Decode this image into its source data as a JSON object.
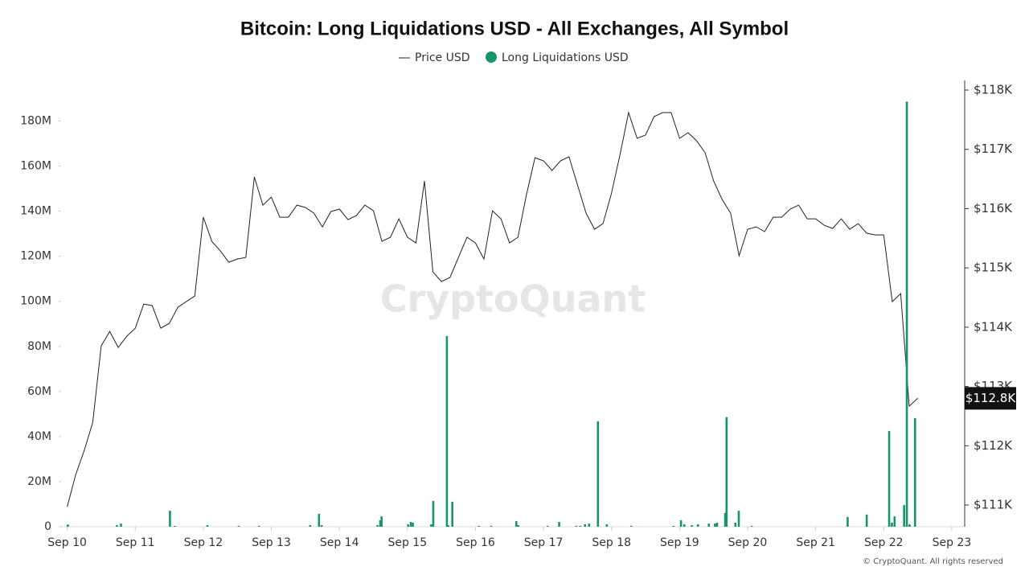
{
  "chart_data": {
    "type": "combo",
    "title": "Bitcoin: Long Liquidations USD - All Exchanges, All Symbol",
    "watermark": "CryptoQuant",
    "footer": "© CryptoQuant. All rights reserved",
    "current_price": {
      "value": 112800,
      "label": "$112.8K"
    },
    "xlim": [
      -0.09,
      13.19
    ],
    "xticks": [
      {
        "value": 0,
        "label": "Sep 10"
      },
      {
        "value": 1,
        "label": "Sep 11"
      },
      {
        "value": 2,
        "label": "Sep 12"
      },
      {
        "value": 3,
        "label": "Sep 13"
      },
      {
        "value": 4,
        "label": "Sep 14"
      },
      {
        "value": 5,
        "label": "Sep 15"
      },
      {
        "value": 6,
        "label": "Sep 16"
      },
      {
        "value": 7,
        "label": "Sep 17"
      },
      {
        "value": 8,
        "label": "Sep 18"
      },
      {
        "value": 9,
        "label": "Sep 19"
      },
      {
        "value": 10,
        "label": "Sep 20"
      },
      {
        "value": 11,
        "label": "Sep 21"
      },
      {
        "value": 12,
        "label": "Sep 22"
      },
      {
        "value": 13,
        "label": "Sep 23"
      }
    ],
    "ylim": [
      0,
      198000000
    ],
    "yticks": [
      0,
      {
        "value": 20000000,
        "label": "20M"
      },
      {
        "value": 40000000,
        "label": "40M"
      },
      {
        "value": 60000000,
        "label": "60M"
      },
      {
        "value": 80000000,
        "label": "80M"
      },
      {
        "value": 100000000,
        "label": "100M"
      },
      {
        "value": 120000000,
        "label": "120M"
      },
      {
        "value": 140000000,
        "label": "140M"
      },
      {
        "value": 160000000,
        "label": "160M"
      },
      {
        "value": 180000000,
        "label": "180M"
      }
    ],
    "y2lim": [
      110634,
      118163
    ],
    "y2ticks": [
      {
        "value": 111000,
        "label": "$111K"
      },
      {
        "value": 112000,
        "label": "$112K"
      },
      {
        "value": 113000,
        "label": "$113K"
      },
      {
        "value": 114000,
        "label": "$114K"
      },
      {
        "value": 115000,
        "label": "$115K"
      },
      {
        "value": 116000,
        "label": "$116K"
      },
      {
        "value": 117000,
        "label": "$117K"
      },
      {
        "value": 118000,
        "label": "$118K"
      }
    ],
    "series": [
      {
        "name": "Price USD",
        "type": "line",
        "axis": "y2",
        "color": "#222222",
        "x": [
          0,
          0.125,
          0.25,
          0.375,
          0.5,
          0.625,
          0.75,
          0.875,
          1,
          1.125,
          1.25,
          1.375,
          1.5,
          1.625,
          1.75,
          1.875,
          2,
          2.125,
          2.25,
          2.375,
          2.5,
          2.625,
          2.75,
          2.875,
          3,
          3.125,
          3.25,
          3.375,
          3.5,
          3.625,
          3.75,
          3.875,
          4,
          4.125,
          4.25,
          4.375,
          4.5,
          4.625,
          4.75,
          4.875,
          5,
          5.125,
          5.25,
          5.375,
          5.5,
          5.625,
          5.75,
          5.875,
          6,
          6.125,
          6.25,
          6.375,
          6.5,
          6.625,
          6.75,
          6.875,
          7,
          7.125,
          7.25,
          7.375,
          7.5,
          7.625,
          7.75,
          7.875,
          8,
          8.125,
          8.25,
          8.375,
          8.5,
          8.625,
          8.75,
          8.875,
          9,
          9.125,
          9.25,
          9.375,
          9.5,
          9.625,
          9.75,
          9.875,
          10,
          10.125,
          10.25,
          10.375,
          10.5,
          10.625,
          10.75,
          10.875,
          11,
          11.125,
          11.25,
          11.375,
          11.5,
          11.625,
          11.75,
          11.875,
          12,
          12.125,
          12.25,
          12.375,
          12.5
        ],
        "values": [
          110971,
          111514,
          111921,
          112396,
          113685,
          113929,
          113658,
          113848,
          113983,
          114390,
          114363,
          113983,
          114065,
          114336,
          114431,
          114526,
          115856,
          115449,
          115286,
          115096,
          115150,
          115177,
          116534,
          116059,
          116195,
          115856,
          115856,
          116059,
          116019,
          115924,
          115693,
          115951,
          115992,
          115815,
          115883,
          116059,
          115964,
          115449,
          115517,
          115829,
          115517,
          115422,
          116467,
          114933,
          114770,
          114838,
          115177,
          115517,
          115422,
          115150,
          115964,
          115829,
          115422,
          115517,
          116236,
          116860,
          116806,
          116643,
          116806,
          116874,
          116399,
          115924,
          115652,
          115747,
          116263,
          116914,
          117620,
          117186,
          117240,
          117552,
          117620,
          117620,
          117186,
          117281,
          117145,
          116942,
          116467,
          116154,
          115924,
          115205,
          115652,
          115693,
          115612,
          115856,
          115856,
          115992,
          116059,
          115829,
          115829,
          115720,
          115666,
          115829,
          115652,
          115747,
          115585,
          115557,
          115557,
          114431,
          114567,
          112667,
          112800
        ]
      },
      {
        "name": "Long Liquidations USD",
        "type": "bar",
        "axis": "y",
        "color": "#17956a",
        "x": [
          0.01,
          0.73,
          0.79,
          1.51,
          1.58,
          2.06,
          2.52,
          2.82,
          3.57,
          3.7,
          3.74,
          4.56,
          4.6,
          4.62,
          5.01,
          5.05,
          5.08,
          5.35,
          5.38,
          5.58,
          5.6,
          5.66,
          6.05,
          6.23,
          6.6,
          6.63,
          7.06,
          7.23,
          7.48,
          7.54,
          7.61,
          7.67,
          7.8,
          7.93,
          8.29,
          8.91,
          9.02,
          9.07,
          9.18,
          9.27,
          9.43,
          9.52,
          9.55,
          9.67,
          9.69,
          9.82,
          9.87,
          10.06,
          11.47,
          11.75,
          12.08,
          12.12,
          12.16,
          12.3,
          12.34,
          12.38,
          12.46
        ],
        "values": [
          1000000,
          700000,
          1400000,
          7100000,
          400000,
          700000,
          400000,
          400000,
          700000,
          5700000,
          700000,
          700000,
          2900000,
          4600000,
          1100000,
          2100000,
          1800000,
          1100000,
          11400000,
          84600000,
          700000,
          11100000,
          400000,
          400000,
          2500000,
          700000,
          400000,
          2100000,
          400000,
          400000,
          1100000,
          1400000,
          46800000,
          1100000,
          400000,
          400000,
          2900000,
          1100000,
          700000,
          1100000,
          1400000,
          1400000,
          1800000,
          6100000,
          48600000,
          1800000,
          7100000,
          400000,
          4300000,
          5400000,
          42500000,
          1800000,
          4600000,
          9600000,
          188600000,
          1100000,
          48200000
        ]
      }
    ]
  }
}
